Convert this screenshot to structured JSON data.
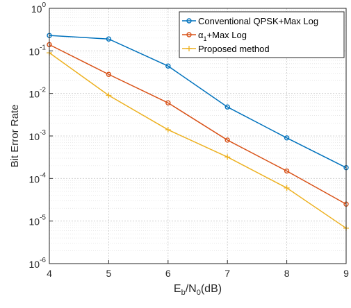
{
  "chart_data": {
    "type": "line",
    "xlabel": {
      "base": "E",
      "sub1": "b",
      "mid": "/N",
      "sub2": "0",
      "tail": "(dB)"
    },
    "ylabel": "Bit Error Rate",
    "x": [
      4,
      5,
      6,
      7,
      8,
      9
    ],
    "xlim": [
      4,
      9
    ],
    "ylim": [
      1e-06,
      1
    ],
    "yscale": "log",
    "x_ticks": [
      "4",
      "5",
      "6",
      "7",
      "8",
      "9"
    ],
    "y_ticks": [
      {
        "base": "10",
        "exp": "0"
      },
      {
        "base": "10",
        "exp": "-1"
      },
      {
        "base": "10",
        "exp": "-2"
      },
      {
        "base": "10",
        "exp": "-3"
      },
      {
        "base": "10",
        "exp": "-4"
      },
      {
        "base": "10",
        "exp": "-5"
      },
      {
        "base": "10",
        "exp": "-6"
      }
    ],
    "grid": true,
    "legend_position": "top-right",
    "series": [
      {
        "name": "Conventional QPSK+Max Log",
        "color": "#0072BD",
        "marker": "circle",
        "values": [
          0.23,
          0.19,
          0.044,
          0.0048,
          0.0009,
          0.00018
        ]
      },
      {
        "name": "α",
        "name_sub": "1",
        "name_tail": "+Max Log",
        "color": "#D95319",
        "marker": "circle",
        "values": [
          0.14,
          0.028,
          0.006,
          0.0008,
          0.00015,
          2.5e-05
        ]
      },
      {
        "name": "Proposed method",
        "color": "#EDB120",
        "marker": "plus",
        "values": [
          0.09,
          0.009,
          0.0014,
          0.00032,
          6e-05,
          6.8e-06
        ]
      }
    ]
  }
}
